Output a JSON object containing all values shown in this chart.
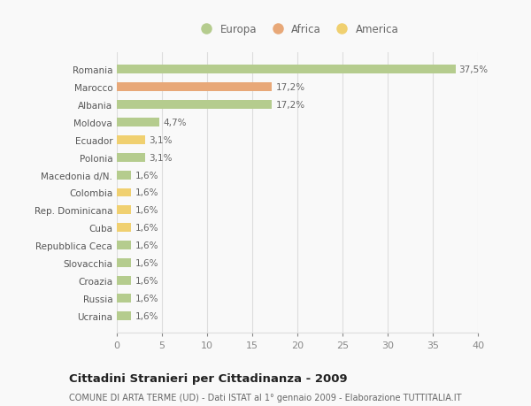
{
  "categories": [
    "Romania",
    "Marocco",
    "Albania",
    "Moldova",
    "Ecuador",
    "Polonia",
    "Macedonia d/N.",
    "Colombia",
    "Rep. Dominicana",
    "Cuba",
    "Repubblica Ceca",
    "Slovacchia",
    "Croazia",
    "Russia",
    "Ucraina"
  ],
  "values": [
    37.5,
    17.2,
    17.2,
    4.7,
    3.1,
    3.1,
    1.6,
    1.6,
    1.6,
    1.6,
    1.6,
    1.6,
    1.6,
    1.6,
    1.6
  ],
  "labels": [
    "37,5%",
    "17,2%",
    "17,2%",
    "4,7%",
    "3,1%",
    "3,1%",
    "1,6%",
    "1,6%",
    "1,6%",
    "1,6%",
    "1,6%",
    "1,6%",
    "1,6%",
    "1,6%",
    "1,6%"
  ],
  "continents": [
    "Europa",
    "Africa",
    "Europa",
    "Europa",
    "America",
    "Europa",
    "Europa",
    "America",
    "America",
    "America",
    "Europa",
    "Europa",
    "Europa",
    "Europa",
    "Europa"
  ],
  "colors": {
    "Europa": "#b5cc8e",
    "Africa": "#e8a878",
    "America": "#f0d070"
  },
  "xlim": [
    0,
    40
  ],
  "xticks": [
    0,
    5,
    10,
    15,
    20,
    25,
    30,
    35,
    40
  ],
  "title": "Cittadini Stranieri per Cittadinanza - 2009",
  "subtitle": "COMUNE DI ARTA TERME (UD) - Dati ISTAT al 1° gennaio 2009 - Elaborazione TUTTITALIA.IT",
  "bg_color": "#f9f9f9",
  "grid_color": "#dddddd",
  "bar_height": 0.5,
  "bar_label_fontsize": 7.5,
  "ytick_fontsize": 7.5,
  "xtick_fontsize": 8,
  "title_fontsize": 9.5,
  "subtitle_fontsize": 7,
  "legend_fontsize": 8.5
}
